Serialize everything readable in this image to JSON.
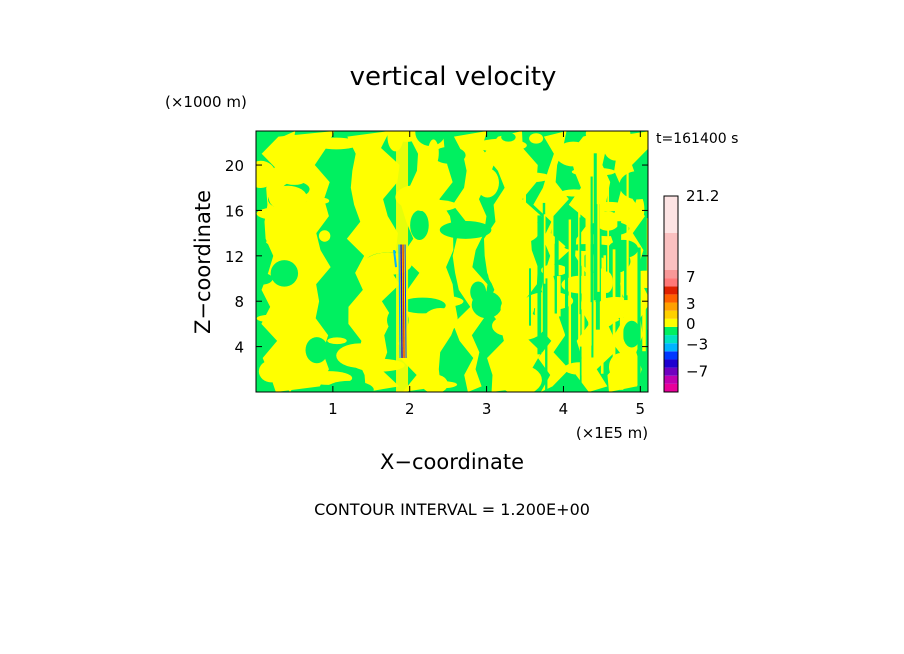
{
  "chart_data": {
    "type": "heatmap",
    "title": "vertical velocity",
    "xlabel": "X−coordinate",
    "ylabel": "Z−coordinate",
    "x_unit": "(×1E5 m)",
    "y_unit": "(×1000 m)",
    "time_label": "t=161400 s",
    "xlim": [
      0,
      5.1
    ],
    "ylim": [
      0,
      23
    ],
    "x_ticks": [
      "1",
      "2",
      "3",
      "4",
      "5"
    ],
    "y_ticks": [
      "4",
      "8",
      "12",
      "16",
      "20"
    ],
    "footer": "CONTOUR INTERVAL = 1.200E+00",
    "colorbar": {
      "labels": [
        "21.2",
        "7",
        "3",
        "0",
        "−3",
        "−7"
      ],
      "label_values": [
        21.2,
        7,
        3,
        0,
        -3,
        -7
      ],
      "levels": [
        -10.0,
        -8.8,
        -7.6,
        -6.4,
        -5.2,
        -4.0,
        -2.8,
        -1.6,
        -0.4,
        0.8,
        2.0,
        3.2,
        4.4,
        5.6,
        6.8,
        8.0,
        14.6,
        21.2
      ],
      "colors": [
        "#e8009a",
        "#c000b0",
        "#7000c0",
        "#1e00d0",
        "#0038ff",
        "#00b4ff",
        "#00e4c0",
        "#00f060",
        "#ffff00",
        "#ffd000",
        "#ffa000",
        "#ff6000",
        "#e02000",
        "#ff7878",
        "#f89898",
        "#fac0c0",
        "#fde4e4"
      ]
    },
    "field": {
      "background_value": 0.2,
      "background_color": "#00f060",
      "dominant_positive_value": 1.0,
      "dominant_positive_color": "#ffff00",
      "updraft_core_x": 1.9
    }
  }
}
